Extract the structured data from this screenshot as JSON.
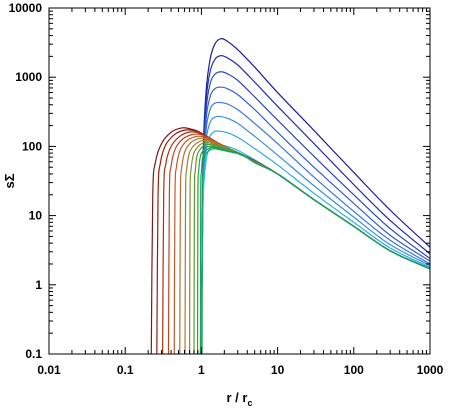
{
  "chart_data": {
    "type": "line",
    "xscale": "log",
    "yscale": "log",
    "xlim": [
      0.01,
      1000
    ],
    "ylim": [
      0.1,
      10000
    ],
    "grid": false,
    "legend": "none",
    "xlabel": "r / r",
    "xlabel_sub": "c",
    "ylabel": "sΣ",
    "x_ticks": [
      {
        "value": 0.01,
        "label": "0.01"
      },
      {
        "value": 0.1,
        "label": "0.1"
      },
      {
        "value": 1,
        "label": "1"
      },
      {
        "value": 10,
        "label": "10"
      },
      {
        "value": 100,
        "label": "100"
      },
      {
        "value": 1000,
        "label": "1000"
      }
    ],
    "y_ticks": [
      {
        "value": 0.1,
        "label": "0.1"
      },
      {
        "value": 1,
        "label": "1"
      },
      {
        "value": 10,
        "label": "10"
      },
      {
        "value": 100,
        "label": "100"
      },
      {
        "value": 1000,
        "label": "1000"
      },
      {
        "value": 10000,
        "label": "10000"
      }
    ],
    "series": [
      {
        "color": "#1a1aa0",
        "x": [
          1.0,
          1.05,
          1.15,
          1.3,
          1.5,
          1.8,
          2.2,
          3,
          5,
          10,
          30,
          100,
          300,
          1000
        ],
        "y": [
          0.1,
          60,
          600,
          1800,
          3000,
          3600,
          3300,
          2500,
          1400,
          600,
          170,
          42,
          12,
          3.5
        ]
      },
      {
        "color": "#2030b0",
        "x": [
          1.0,
          1.05,
          1.15,
          1.3,
          1.5,
          1.8,
          2.2,
          3,
          5,
          10,
          30,
          100,
          300,
          1000
        ],
        "y": [
          0.1,
          50,
          450,
          1200,
          1800,
          2050,
          1900,
          1500,
          850,
          380,
          110,
          28,
          8.5,
          2.8
        ]
      },
      {
        "color": "#2848c0",
        "x": [
          1.0,
          1.05,
          1.15,
          1.3,
          1.5,
          1.8,
          2.2,
          3,
          5,
          10,
          30,
          100,
          300,
          1000
        ],
        "y": [
          0.1,
          40,
          330,
          800,
          1100,
          1200,
          1120,
          900,
          520,
          240,
          72,
          20,
          6.5,
          2.4
        ]
      },
      {
        "color": "#3060d0",
        "x": [
          1.0,
          1.05,
          1.15,
          1.3,
          1.5,
          1.8,
          2.2,
          3,
          5,
          10,
          30,
          100,
          300,
          1000
        ],
        "y": [
          0.1,
          32,
          240,
          520,
          680,
          720,
          680,
          560,
          340,
          160,
          50,
          15,
          5.2,
          2.2
        ]
      },
      {
        "color": "#3878d8",
        "x": [
          1.0,
          1.05,
          1.15,
          1.3,
          1.5,
          1.8,
          2.2,
          3,
          5,
          10,
          30,
          100,
          300,
          1000
        ],
        "y": [
          0.1,
          26,
          170,
          340,
          420,
          430,
          410,
          340,
          215,
          110,
          36,
          11.5,
          4.4,
          2.0
        ]
      },
      {
        "color": "#3890e0",
        "x": [
          1.0,
          1.05,
          1.15,
          1.3,
          1.5,
          1.8,
          2.2,
          3,
          5,
          10,
          30,
          100,
          300,
          1000
        ],
        "y": [
          0.1,
          21,
          120,
          220,
          265,
          270,
          255,
          215,
          140,
          75,
          27,
          9.5,
          3.8,
          1.9
        ]
      },
      {
        "color": "#30a8e8",
        "x": [
          1.0,
          1.05,
          1.15,
          1.3,
          1.5,
          1.8,
          2.2,
          3,
          5,
          10,
          30,
          100,
          300,
          1000
        ],
        "y": [
          0.1,
          17,
          85,
          140,
          165,
          165,
          158,
          135,
          93,
          54,
          21,
          8.0,
          3.4,
          1.8
        ]
      },
      {
        "color": "#20c0f0",
        "x": [
          1.0,
          1.05,
          1.15,
          1.3,
          1.5,
          1.8,
          2.2,
          3,
          5,
          10,
          30,
          100,
          300,
          1000
        ],
        "y": [
          0.1,
          14,
          60,
          95,
          105,
          105,
          100,
          88,
          64,
          40,
          17,
          7.0,
          3.1,
          1.75
        ]
      },
      {
        "color": "#7a1a1a",
        "x": [
          0.22,
          0.23,
          0.25,
          0.3,
          0.4,
          0.55,
          0.7,
          0.9,
          1.1,
          1.5,
          2,
          3,
          5,
          10,
          30,
          100,
          300,
          1000
        ],
        "y": [
          0.1,
          20,
          60,
          110,
          160,
          185,
          180,
          165,
          145,
          118,
          100,
          82,
          62,
          40,
          17,
          7.0,
          3.1,
          1.7
        ]
      },
      {
        "color": "#902010",
        "x": [
          0.26,
          0.27,
          0.29,
          0.34,
          0.45,
          0.6,
          0.78,
          1.0,
          1.2,
          1.6,
          2.1,
          3,
          5,
          10,
          30,
          100,
          300,
          1000
        ],
        "y": [
          0.1,
          20,
          58,
          105,
          150,
          172,
          170,
          156,
          138,
          114,
          98,
          81,
          62,
          40,
          17,
          7.0,
          3.1,
          1.7
        ]
      },
      {
        "color": "#a83010",
        "x": [
          0.31,
          0.32,
          0.34,
          0.4,
          0.52,
          0.68,
          0.86,
          1.05,
          1.3,
          1.7,
          2.2,
          3,
          5,
          10,
          30,
          100,
          300,
          1000
        ],
        "y": [
          0.1,
          20,
          55,
          100,
          140,
          160,
          160,
          148,
          132,
          110,
          95,
          80,
          61,
          40,
          17,
          7.0,
          3.1,
          1.7
        ]
      },
      {
        "color": "#b84820",
        "x": [
          0.37,
          0.38,
          0.4,
          0.46,
          0.58,
          0.75,
          0.92,
          1.1,
          1.35,
          1.8,
          2.3,
          3,
          5,
          10,
          30,
          100,
          300,
          1000
        ],
        "y": [
          0.1,
          20,
          52,
          95,
          130,
          148,
          150,
          141,
          127,
          107,
          93,
          80,
          61,
          40,
          17,
          7.0,
          3.1,
          1.7
        ]
      },
      {
        "color": "#c05a28",
        "x": [
          0.44,
          0.45,
          0.47,
          0.53,
          0.65,
          0.82,
          0.98,
          1.15,
          1.4,
          1.85,
          2.4,
          3,
          5,
          10,
          30,
          100,
          300,
          1000
        ],
        "y": [
          0.1,
          20,
          50,
          90,
          122,
          138,
          140,
          133,
          121,
          104,
          91,
          79,
          61,
          40,
          17,
          7.0,
          3.1,
          1.7
        ]
      },
      {
        "color": "#b87030",
        "x": [
          0.52,
          0.53,
          0.55,
          0.61,
          0.73,
          0.89,
          1.04,
          1.2,
          1.45,
          1.9,
          2.5,
          3.2,
          5,
          10,
          30,
          100,
          300,
          1000
        ],
        "y": [
          0.1,
          20,
          48,
          86,
          114,
          128,
          131,
          126,
          116,
          101,
          89,
          78,
          60,
          40,
          17,
          7.0,
          3.1,
          1.7
        ]
      },
      {
        "color": "#a08030",
        "x": [
          0.61,
          0.62,
          0.64,
          0.7,
          0.82,
          0.96,
          1.1,
          1.25,
          1.5,
          1.95,
          2.6,
          3.3,
          5,
          10,
          30,
          100,
          300,
          1000
        ],
        "y": [
          0.1,
          20,
          46,
          82,
          106,
          119,
          122,
          119,
          111,
          98,
          87,
          77,
          60,
          40,
          17,
          7.0,
          3.1,
          1.7
        ]
      },
      {
        "color": "#809030",
        "x": [
          0.7,
          0.71,
          0.73,
          0.79,
          0.9,
          1.03,
          1.16,
          1.3,
          1.55,
          2.0,
          2.7,
          3.4,
          5,
          10,
          30,
          100,
          300,
          1000
        ],
        "y": [
          0.1,
          20,
          45,
          78,
          99,
          111,
          114,
          112,
          106,
          95,
          85,
          76,
          59,
          40,
          17,
          7.0,
          3.1,
          1.7
        ]
      },
      {
        "color": "#5a9a30",
        "x": [
          0.8,
          0.81,
          0.83,
          0.88,
          0.98,
          1.1,
          1.22,
          1.36,
          1.6,
          2.05,
          2.8,
          3.5,
          5,
          10,
          30,
          100,
          300,
          1000
        ],
        "y": [
          0.1,
          20,
          44,
          75,
          93,
          104,
          107,
          106,
          101,
          92,
          83,
          75,
          59,
          40,
          17,
          7.0,
          3.1,
          1.7
        ]
      },
      {
        "color": "#30a030",
        "x": [
          0.89,
          0.9,
          0.92,
          0.97,
          1.06,
          1.17,
          1.28,
          1.42,
          1.65,
          2.1,
          2.9,
          3.6,
          5,
          10,
          30,
          100,
          300,
          1000
        ],
        "y": [
          0.1,
          20,
          43,
          72,
          88,
          98,
          101,
          100,
          96,
          89,
          81,
          74,
          59,
          40,
          17,
          7.0,
          3.1,
          1.7
        ]
      },
      {
        "color": "#20a050",
        "x": [
          0.97,
          0.98,
          1.0,
          1.04,
          1.12,
          1.23,
          1.34,
          1.48,
          1.7,
          2.2,
          3.0,
          3.7,
          5,
          10,
          30,
          100,
          300,
          1000
        ],
        "y": [
          0.1,
          20,
          42,
          70,
          84,
          93,
          96,
          96,
          92,
          86,
          79,
          73,
          59,
          40,
          17,
          7.0,
          3.1,
          1.7
        ]
      },
      {
        "color": "#10a070",
        "x": [
          1.02,
          1.03,
          1.05,
          1.09,
          1.17,
          1.28,
          1.4,
          1.55,
          1.8,
          2.3,
          3.1,
          3.8,
          5,
          10,
          30,
          100,
          300,
          1000
        ],
        "y": [
          0.1,
          20,
          41,
          68,
          80,
          88,
          92,
          92,
          89,
          84,
          78,
          72,
          58,
          40,
          17,
          7.0,
          3.1,
          1.7
        ]
      }
    ]
  }
}
